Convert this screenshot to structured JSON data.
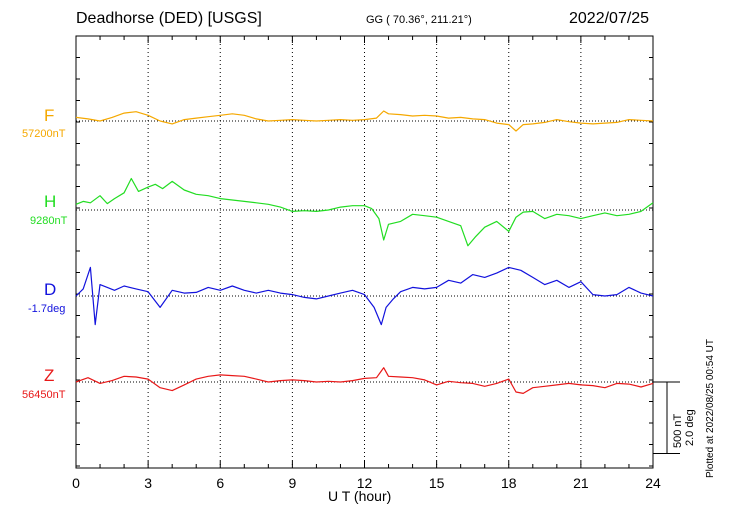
{
  "header": {
    "station": "Deadhorse (DED)  [USGS]",
    "coords": "GG ( 70.36°, 211.21°)",
    "date": "2022/07/25"
  },
  "footer": {
    "plotted": "Plotted at 2022/08/25 00:54 UT"
  },
  "chart_data": {
    "type": "line",
    "xlabel": "U T (hour)",
    "xlim": [
      0,
      24
    ],
    "xticks": [
      "0",
      "3",
      "6",
      "9",
      "12",
      "15",
      "18",
      "21",
      "24"
    ],
    "grid": "vertical dotted lines every 3 hours",
    "scale_bar": {
      "label_nT": "500 nT",
      "label_deg": "2.0 deg"
    },
    "series": [
      {
        "name": "F",
        "baseline_label": "57200nT",
        "color": "#f5a800",
        "x": [
          0,
          0.5,
          1,
          1.5,
          2,
          2.5,
          3,
          3.5,
          4,
          4.5,
          5,
          5.5,
          6,
          6.5,
          7,
          7.5,
          8,
          8.5,
          9,
          9.5,
          10,
          10.5,
          11,
          11.5,
          12,
          12.5,
          12.8,
          13,
          13.5,
          14,
          14.5,
          15,
          15.5,
          16,
          16.5,
          17,
          17.5,
          18,
          18.3,
          18.6,
          19,
          19.5,
          20,
          20.5,
          21,
          21.5,
          22,
          22.5,
          23,
          23.5,
          24
        ],
        "y": [
          25,
          15,
          0,
          25,
          55,
          65,
          40,
          0,
          -20,
          10,
          20,
          30,
          40,
          50,
          40,
          15,
          0,
          5,
          10,
          5,
          0,
          5,
          10,
          5,
          10,
          20,
          70,
          50,
          45,
          35,
          40,
          35,
          20,
          25,
          15,
          10,
          -15,
          -25,
          -70,
          -25,
          -20,
          -10,
          10,
          -5,
          -15,
          -20,
          -15,
          -10,
          10,
          5,
          0
        ]
      },
      {
        "name": "H",
        "baseline_label": "9280nT",
        "color": "#22dd22",
        "x": [
          0,
          0.3,
          0.6,
          1,
          1.3,
          1.6,
          2,
          2.3,
          2.6,
          3,
          3.3,
          3.6,
          4,
          4.5,
          5,
          5.5,
          6,
          6.5,
          7,
          7.5,
          8,
          8.5,
          9,
          9.5,
          10,
          10.5,
          11,
          11.5,
          12,
          12.3,
          12.6,
          12.8,
          13,
          13.5,
          14,
          14.5,
          15,
          15.5,
          16,
          16.3,
          16.6,
          17,
          17.5,
          18,
          18.3,
          18.6,
          19,
          19.5,
          20,
          20.5,
          21,
          21.5,
          22,
          22.5,
          23,
          23.5,
          24
        ],
        "y": [
          40,
          60,
          50,
          100,
          45,
          80,
          120,
          220,
          130,
          160,
          180,
          150,
          200,
          140,
          110,
          100,
          80,
          70,
          60,
          50,
          40,
          20,
          -10,
          -5,
          -10,
          0,
          20,
          30,
          30,
          10,
          -60,
          -210,
          -100,
          -80,
          -30,
          -40,
          -50,
          -80,
          -110,
          -250,
          -190,
          -120,
          -80,
          -150,
          -50,
          -15,
          -10,
          -60,
          -30,
          -40,
          -60,
          -40,
          -20,
          -40,
          -30,
          -10,
          50
        ]
      },
      {
        "name": "D",
        "baseline_label": "-1.7deg",
        "color": "#1212dd",
        "x": [
          0,
          0.3,
          0.6,
          0.8,
          1,
          1.3,
          1.6,
          2,
          2.5,
          3,
          3.5,
          4,
          4.5,
          5,
          5.5,
          6,
          6.5,
          7,
          7.5,
          8,
          8.5,
          9,
          9.5,
          10,
          10.5,
          11,
          11.5,
          12,
          12.4,
          12.7,
          12.9,
          13.2,
          13.5,
          14,
          14.5,
          15,
          15.5,
          16,
          16.5,
          17,
          17.5,
          18,
          18.5,
          19,
          19.5,
          20,
          20.5,
          21,
          21.5,
          22,
          22.5,
          23,
          23.5,
          24
        ],
        "y": [
          0,
          50,
          200,
          -200,
          80,
          60,
          40,
          70,
          50,
          30,
          -80,
          40,
          20,
          25,
          60,
          40,
          70,
          40,
          20,
          40,
          20,
          10,
          -10,
          -20,
          0,
          20,
          40,
          10,
          -80,
          -200,
          -80,
          -20,
          30,
          60,
          50,
          60,
          110,
          90,
          150,
          130,
          160,
          200,
          180,
          130,
          80,
          110,
          60,
          100,
          10,
          0,
          10,
          60,
          20,
          0
        ]
      },
      {
        "name": "Z",
        "baseline_label": "56450nT",
        "color": "#e81818",
        "x": [
          0,
          0.5,
          1,
          1.5,
          2,
          2.5,
          3,
          3.5,
          4,
          4.5,
          5,
          5.5,
          6,
          6.5,
          7,
          7.5,
          8,
          8.5,
          9,
          9.5,
          10,
          10.5,
          11,
          11.5,
          12,
          12.5,
          12.8,
          13,
          13.5,
          14,
          14.5,
          15,
          15.5,
          16,
          16.5,
          17,
          17.5,
          18,
          18.3,
          18.6,
          19,
          19.5,
          20,
          20.5,
          21,
          21.5,
          22,
          22.5,
          23,
          23.5,
          24
        ],
        "y": [
          0,
          30,
          -10,
          10,
          40,
          35,
          20,
          -40,
          -60,
          -20,
          20,
          40,
          50,
          45,
          40,
          20,
          0,
          10,
          15,
          10,
          0,
          5,
          0,
          10,
          25,
          30,
          100,
          40,
          35,
          30,
          15,
          -20,
          5,
          -5,
          -10,
          -30,
          -10,
          20,
          -70,
          -80,
          -40,
          -30,
          -20,
          -10,
          -20,
          -25,
          -40,
          -10,
          -15,
          -35,
          -10
        ]
      }
    ]
  }
}
